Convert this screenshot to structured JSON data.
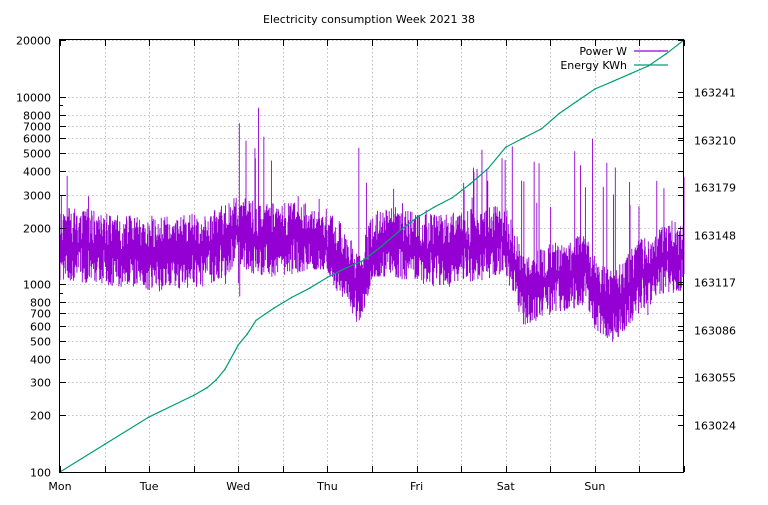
{
  "chart_data": {
    "type": "line",
    "title": "Electricity consumption Week 2021 38",
    "x_tick_labels": [
      "Mon",
      "Tue",
      "Wed",
      "Thu",
      "Fri",
      "Sat",
      "Sun"
    ],
    "x_minor_ticks_per_day": 2,
    "x_range_days": [
      0,
      7
    ],
    "y_left_scale": "log",
    "y_left_range": [
      100,
      20000
    ],
    "y_left_tick_labels": [
      "100",
      "200",
      "300",
      "400",
      "500",
      "600",
      "700",
      "800",
      "1000",
      "2000",
      "3000",
      "4000",
      "5000",
      "6000",
      "7000",
      "8000",
      "10000",
      "20000"
    ],
    "y_left_tick_values": [
      100,
      200,
      300,
      400,
      500,
      600,
      700,
      800,
      1000,
      2000,
      3000,
      4000,
      5000,
      6000,
      7000,
      8000,
      10000,
      20000
    ],
    "y_right_range": [
      162993,
      163275
    ],
    "y_right_tick_labels": [
      "163024",
      "163055",
      "163086",
      "163117",
      "163148",
      "163179",
      "163210",
      "163241"
    ],
    "y_right_tick_values": [
      163024,
      163055,
      163086,
      163117,
      163148,
      163179,
      163210,
      163241
    ],
    "grid": true,
    "legend_position": "top-right",
    "colors": {
      "power": "#9400d3",
      "energy": "#009e73",
      "grid": "#b0b0b0"
    },
    "series": [
      {
        "name": "Power W",
        "axis": "left",
        "style": "impulses",
        "baseline_profile": {
          "x_days": [
            0,
            0.5,
            1.0,
            1.5,
            1.7,
            2.0,
            2.3,
            2.5,
            2.8,
            3.0,
            3.2,
            3.35,
            3.5,
            3.75,
            4.0,
            4.3,
            4.6,
            4.9,
            5.0,
            5.2,
            5.4,
            5.6,
            5.9,
            6.0,
            6.2,
            6.5,
            6.8,
            7.0
          ],
          "center_w": [
            1650,
            1550,
            1450,
            1500,
            1550,
            1900,
            1700,
            1750,
            1750,
            1550,
            1350,
            900,
            1550,
            1650,
            1550,
            1500,
            1600,
            1700,
            1700,
            950,
            1000,
            1100,
            1200,
            900,
            750,
            1100,
            1400,
            1400
          ],
          "max_w": [
            4500,
            2400,
            2400,
            2400,
            2400,
            9000,
            9000,
            4000,
            2500,
            3500,
            2500,
            5500,
            5500,
            3500,
            2500,
            3000,
            4500,
            7000,
            7000,
            5500,
            5000,
            4500,
            6000,
            6000,
            4800,
            3700,
            3500,
            4500
          ],
          "min_w": [
            1000,
            950,
            900,
            900,
            950,
            750,
            1000,
            1100,
            1200,
            1200,
            700,
            520,
            1100,
            1100,
            1000,
            950,
            1000,
            1100,
            1100,
            480,
            500,
            600,
            700,
            500,
            470,
            600,
            700,
            700
          ]
        }
      },
      {
        "name": "Energy KWh",
        "axis": "right",
        "style": "line",
        "x": [
          0.0,
          0.5,
          1.0,
          1.5,
          1.65,
          1.75,
          1.85,
          2.0,
          2.1,
          2.2,
          2.4,
          2.6,
          2.8,
          3.0,
          3.2,
          3.4,
          3.6,
          3.8,
          4.0,
          4.2,
          4.4,
          4.6,
          4.8,
          5.0,
          5.2,
          5.4,
          5.6,
          5.8,
          6.0,
          6.2,
          6.4,
          6.6,
          6.8,
          7.0
        ],
        "y": [
          162993,
          163011,
          163029,
          163043,
          163048,
          163053,
          163060,
          163076,
          163083,
          163092,
          163100,
          163107,
          163113,
          163120,
          163126,
          163131,
          163140,
          163150,
          163159,
          163166,
          163172,
          163181,
          163191,
          163205,
          163211,
          163217,
          163227,
          163235,
          163243,
          163248,
          163253,
          163258,
          163266,
          163275
        ]
      }
    ]
  }
}
